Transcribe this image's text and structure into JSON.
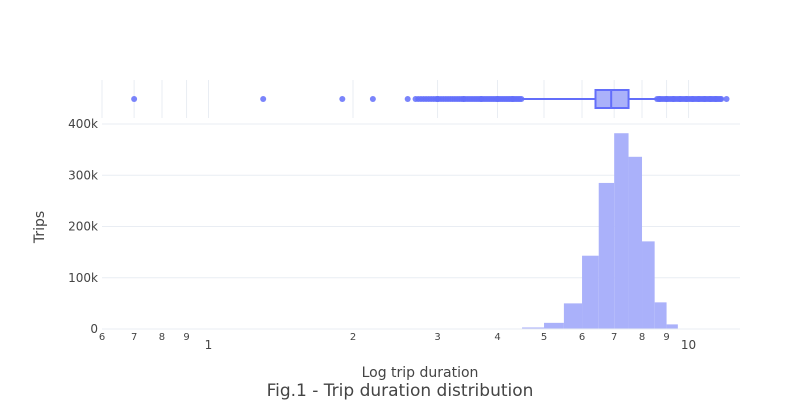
{
  "chart_data": {
    "type": "histogram",
    "title": "Fig.1 - Trip duration distribution",
    "xlabel": "Log trip duration",
    "ylabel": "Trips",
    "x_scale": "log",
    "x_range": [
      6,
      12.8
    ],
    "ylim": [
      0,
      400000
    ],
    "y_ticks": [
      0,
      100000,
      200000,
      300000,
      400000
    ],
    "y_tick_labels": [
      "0",
      "100k",
      "200k",
      "300k",
      "400k"
    ],
    "x_ticks": [
      {
        "value": 6,
        "label": "6",
        "major": false
      },
      {
        "value": 7,
        "label": "7",
        "major": false
      },
      {
        "value": 8,
        "label": "8",
        "major": false
      },
      {
        "value": 9,
        "label": "9",
        "major": false
      },
      {
        "value": 10,
        "label": "1",
        "major": true
      },
      {
        "value": 20,
        "label": "2",
        "major": false
      },
      {
        "value": 30,
        "label": "3",
        "major": false
      },
      {
        "value": 40,
        "label": "4",
        "major": false
      },
      {
        "value": 50,
        "label": "5",
        "major": false
      },
      {
        "value": 60,
        "label": "6",
        "major": false
      },
      {
        "value": 70,
        "label": "7",
        "major": false
      },
      {
        "value": 80,
        "label": "8",
        "major": false
      },
      {
        "value": 90,
        "label": "9",
        "major": false
      },
      {
        "value": 100,
        "label": "10",
        "major": true
      }
    ],
    "bins": [
      {
        "x0": 35,
        "x1": 40,
        "count": 500
      },
      {
        "x0": 40,
        "x1": 45,
        "count": 1000
      },
      {
        "x0": 45,
        "x1": 50,
        "count": 3000
      },
      {
        "x0": 50,
        "x1": 55,
        "count": 12000
      },
      {
        "x0": 55,
        "x1": 60,
        "count": 50000
      },
      {
        "x0": 60,
        "x1": 65,
        "count": 143000
      },
      {
        "x0": 65,
        "x1": 70,
        "count": 285000
      },
      {
        "x0": 70,
        "x1": 75,
        "count": 382000
      },
      {
        "x0": 75,
        "x1": 80,
        "count": 336000
      },
      {
        "x0": 80,
        "x1": 85,
        "count": 171000
      },
      {
        "x0": 85,
        "x1": 90,
        "count": 52000
      },
      {
        "x0": 90,
        "x1": 95,
        "count": 9000
      }
    ],
    "boxplot": {
      "q1": 64,
      "median": 69,
      "q3": 75,
      "lower_fence": 45,
      "upper_fence": 86,
      "outliers": [
        7,
        13,
        19,
        22,
        26,
        30,
        34,
        37,
        40,
        43,
        46,
        49,
        52,
        55,
        58,
        61,
        63,
        66,
        69,
        72,
        75,
        78,
        81,
        84,
        87,
        90,
        93,
        96,
        99,
        102,
        105,
        108,
        111,
        114,
        117,
        120
      ]
    },
    "colors": {
      "bar": "#aab1fa",
      "box_line": "#636efa",
      "box_fill": "#aab1fa",
      "grid": "#e9edf3",
      "text": "#444444"
    },
    "grid": true,
    "legend": "none"
  }
}
